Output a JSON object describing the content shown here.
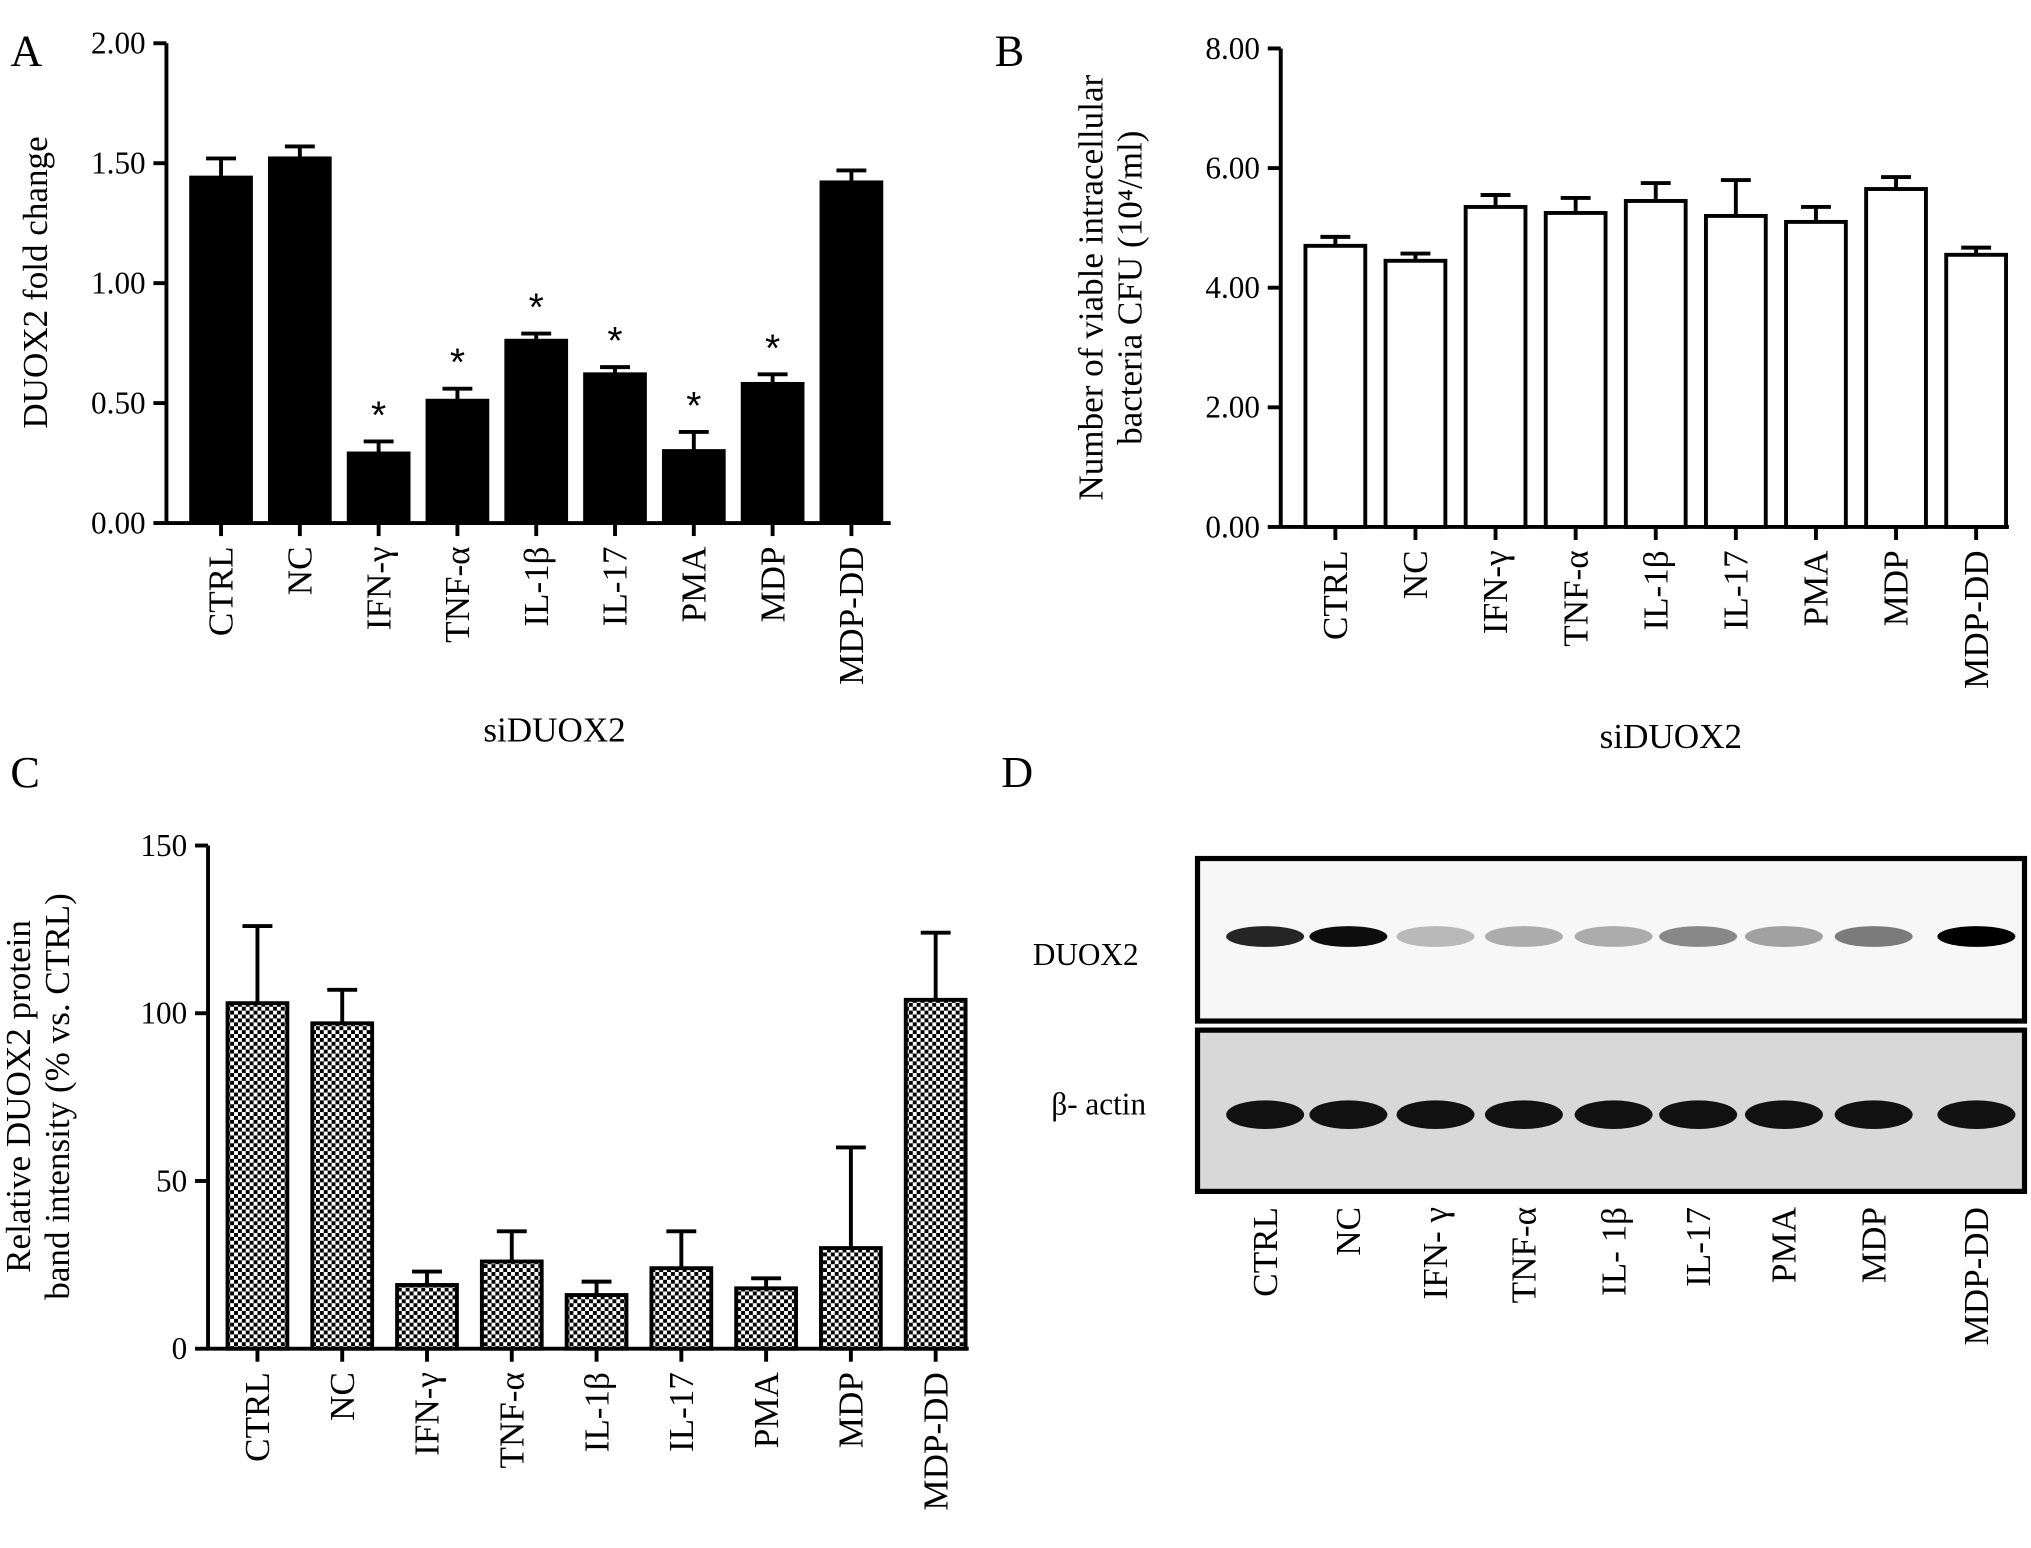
{
  "chart_data": [
    {
      "type": "bar",
      "panel": "A",
      "ylabel": [
        "DUOX2  fold change"
      ],
      "xlabel": "siDUOX2",
      "categories": [
        "CTRL",
        "NC",
        "IFN-γ",
        "TNF-α",
        "IL-1β",
        "IL-17",
        "PMA",
        "MDP",
        "MDP-DD"
      ],
      "values": [
        1.44,
        1.52,
        0.29,
        0.51,
        0.76,
        0.62,
        0.3,
        0.58,
        1.42
      ],
      "errors": [
        0.08,
        0.05,
        0.05,
        0.05,
        0.03,
        0.03,
        0.08,
        0.04,
        0.05
      ],
      "marks": [
        null,
        null,
        "*",
        "*",
        "*",
        "*",
        "*",
        "*",
        null
      ],
      "color": "#000000",
      "ylim": [
        0,
        2
      ],
      "yticks": [
        {
          "value": 0,
          "label": "0.00"
        },
        {
          "value": 0.5,
          "label": "0.50"
        },
        {
          "value": 1,
          "label": "1.00"
        },
        {
          "value": 1.5,
          "label": "1.50"
        },
        {
          "value": 2,
          "label": "2.00"
        }
      ]
    },
    {
      "type": "bar",
      "panel": "B",
      "ylabel": [
        "Number of viable intracellular",
        "bacteria  CFU (10⁴/ml)"
      ],
      "xlabel": "siDUOX2",
      "categories": [
        "CTRL",
        "NC",
        "IFN-γ",
        "TNF-α",
        "IL-1β",
        "IL-17",
        "PMA",
        "MDP",
        "MDP-DD"
      ],
      "values": [
        4.7,
        4.45,
        5.35,
        5.25,
        5.45,
        5.2,
        5.1,
        5.65,
        4.55
      ],
      "errors": [
        0.15,
        0.12,
        0.2,
        0.25,
        0.3,
        0.6,
        0.25,
        0.2,
        0.12
      ],
      "color": "#ffffff",
      "ylim": [
        0,
        8
      ],
      "yticks": [
        {
          "value": 0,
          "label": "0.00"
        },
        {
          "value": 2,
          "label": "2.00"
        },
        {
          "value": 4,
          "label": "4.00"
        },
        {
          "value": 6,
          "label": "6.00"
        },
        {
          "value": 8,
          "label": "8.00"
        }
      ]
    },
    {
      "type": "bar",
      "panel": "C",
      "ylabel": [
        "Relative DUOX2 protein",
        "band intensity (% vs. CTRL)"
      ],
      "categories": [
        "CTRL",
        "NC",
        "IFN-γ",
        "TNF-α",
        "IL-1β",
        "IL-17",
        "PMA",
        "MDP",
        "MDP-DD"
      ],
      "values": [
        103,
        97,
        19,
        26,
        16,
        24,
        18,
        30,
        104
      ],
      "errors": [
        23,
        10,
        4,
        9,
        4,
        11,
        3,
        30,
        20
      ],
      "color": "checkered",
      "ylim": [
        0,
        150
      ],
      "yticks": [
        0,
        50,
        100,
        150
      ]
    }
  ],
  "blot": {
    "panel": "D",
    "rows": [
      "DUOX2",
      "β- actin"
    ],
    "lanes": [
      "CTRL",
      "NC",
      "IFN- γ",
      "TNF-α",
      "IL- 1β",
      "IL-17",
      "PMA",
      "MDP",
      "MDP-DD"
    ]
  }
}
